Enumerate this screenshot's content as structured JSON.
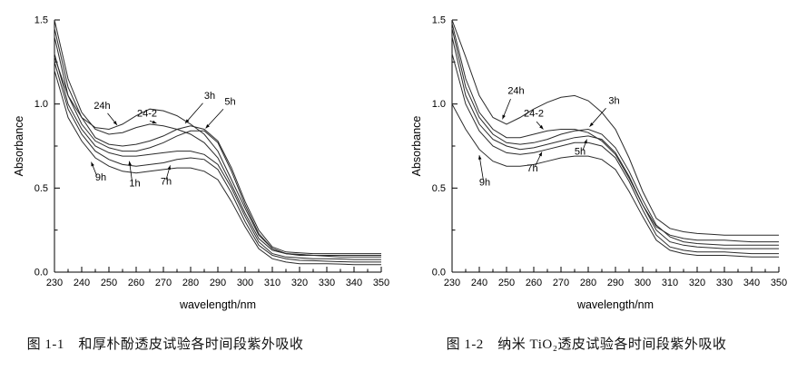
{
  "figures": [
    {
      "caption": "图 1-1　和厚朴酚透皮试验各时间段紫外吸收"
    },
    {
      "caption": "图 1-2　纳米 TiO₂透皮试验各时间段紫外吸收"
    }
  ],
  "chart_data": [
    {
      "type": "line",
      "title": "",
      "xlabel": "wavelength/nm",
      "ylabel": "Absorbance",
      "xlim": [
        230,
        350
      ],
      "ylim": [
        0,
        1.5
      ],
      "xticks": [
        230,
        240,
        250,
        260,
        270,
        280,
        290,
        300,
        310,
        320,
        330,
        340,
        350
      ],
      "yticks": [
        0,
        0.5,
        1.0,
        1.5
      ],
      "x_minor_step": 5,
      "y_minor_step": 0.25,
      "grid": false,
      "legend": "none",
      "line_color": "#2b2b2b",
      "x": [
        230,
        235,
        240,
        245,
        250,
        255,
        260,
        265,
        270,
        275,
        280,
        285,
        290,
        295,
        300,
        305,
        310,
        315,
        320,
        325,
        330,
        335,
        340,
        345,
        350
      ],
      "series": [
        {
          "name": "24h",
          "values": [
            1.28,
            1.05,
            0.92,
            0.86,
            0.85,
            0.88,
            0.93,
            0.97,
            0.96,
            0.93,
            0.88,
            0.82,
            0.72,
            0.55,
            0.38,
            0.22,
            0.14,
            0.11,
            0.1,
            0.1,
            0.095,
            0.09,
            0.09,
            0.09,
            0.09
          ]
        },
        {
          "name": "24-2",
          "values": [
            1.5,
            1.15,
            0.95,
            0.85,
            0.82,
            0.83,
            0.86,
            0.88,
            0.87,
            0.85,
            0.82,
            0.77,
            0.68,
            0.52,
            0.35,
            0.2,
            0.13,
            0.11,
            0.105,
            0.1,
            0.1,
            0.1,
            0.1,
            0.1,
            0.1
          ]
        },
        {
          "name": "3h",
          "values": [
            1.45,
            1.1,
            0.92,
            0.8,
            0.76,
            0.75,
            0.76,
            0.78,
            0.81,
            0.85,
            0.87,
            0.85,
            0.78,
            0.62,
            0.42,
            0.25,
            0.15,
            0.12,
            0.115,
            0.11,
            0.11,
            0.11,
            0.11,
            0.11,
            0.11
          ]
        },
        {
          "name": "5h",
          "values": [
            1.4,
            1.05,
            0.88,
            0.78,
            0.74,
            0.72,
            0.72,
            0.74,
            0.77,
            0.81,
            0.84,
            0.84,
            0.77,
            0.6,
            0.4,
            0.23,
            0.14,
            0.11,
            0.105,
            0.1,
            0.1,
            0.1,
            0.1,
            0.1,
            0.1
          ]
        },
        {
          "name": "1h",
          "values": [
            1.3,
            1.0,
            0.85,
            0.75,
            0.71,
            0.69,
            0.69,
            0.7,
            0.71,
            0.72,
            0.72,
            0.7,
            0.64,
            0.5,
            0.33,
            0.18,
            0.11,
            0.09,
            0.085,
            0.08,
            0.08,
            0.078,
            0.075,
            0.075,
            0.075
          ]
        },
        {
          "name": "7h",
          "values": [
            1.25,
            0.97,
            0.82,
            0.72,
            0.67,
            0.64,
            0.63,
            0.64,
            0.65,
            0.67,
            0.68,
            0.67,
            0.61,
            0.47,
            0.3,
            0.16,
            0.1,
            0.08,
            0.07,
            0.068,
            0.065,
            0.062,
            0.06,
            0.06,
            0.06
          ]
        },
        {
          "name": "9h",
          "values": [
            1.2,
            0.92,
            0.78,
            0.68,
            0.63,
            0.6,
            0.59,
            0.6,
            0.61,
            0.62,
            0.62,
            0.6,
            0.55,
            0.42,
            0.27,
            0.14,
            0.08,
            0.06,
            0.05,
            0.05,
            0.05,
            0.048,
            0.045,
            0.045,
            0.045
          ]
        }
      ],
      "annotations": [
        {
          "text": "24h",
          "tx": 247.5,
          "ty": 0.97,
          "line": [
            249.5,
            0.945,
            253,
            0.875
          ]
        },
        {
          "text": "24-2",
          "tx": 264,
          "ty": 0.925,
          "line": [
            265,
            0.9,
            267.5,
            0.885
          ]
        },
        {
          "text": "3h",
          "tx": 287,
          "ty": 1.03,
          "line": [
            284.5,
            1.005,
            278,
            0.885
          ]
        },
        {
          "text": "5h",
          "tx": 294.5,
          "ty": 0.995,
          "line": [
            292,
            0.97,
            285.5,
            0.855
          ]
        },
        {
          "text": "9h",
          "tx": 247,
          "ty": 0.545,
          "line": [
            245.5,
            0.575,
            243.5,
            0.655
          ]
        },
        {
          "text": "1h",
          "tx": 259.5,
          "ty": 0.51,
          "line": [
            258.5,
            0.54,
            257.5,
            0.66
          ]
        },
        {
          "text": "7h",
          "tx": 271,
          "ty": 0.52,
          "line": [
            271,
            0.55,
            272.5,
            0.635
          ]
        }
      ]
    },
    {
      "type": "line",
      "title": "",
      "xlabel": "wavelength/nm",
      "ylabel": "Absorbance",
      "xlim": [
        230,
        350
      ],
      "ylim": [
        0,
        1.5
      ],
      "xticks": [
        230,
        240,
        250,
        260,
        270,
        280,
        290,
        300,
        310,
        320,
        330,
        340,
        350
      ],
      "yticks": [
        0,
        0.5,
        1.0,
        1.5
      ],
      "x_minor_step": 5,
      "y_minor_step": 0.25,
      "grid": false,
      "legend": "none",
      "line_color": "#2b2b2b",
      "x": [
        230,
        235,
        240,
        245,
        250,
        255,
        260,
        265,
        270,
        275,
        280,
        285,
        290,
        295,
        300,
        305,
        310,
        315,
        320,
        325,
        330,
        335,
        340,
        345,
        350
      ],
      "series": [
        {
          "name": "24h",
          "values": [
            1.5,
            1.28,
            1.05,
            0.92,
            0.88,
            0.92,
            0.97,
            1.01,
            1.04,
            1.05,
            1.02,
            0.95,
            0.85,
            0.68,
            0.48,
            0.32,
            0.26,
            0.24,
            0.23,
            0.225,
            0.22,
            0.22,
            0.22,
            0.22,
            0.22
          ]
        },
        {
          "name": "24-2",
          "values": [
            1.48,
            1.15,
            0.95,
            0.85,
            0.8,
            0.8,
            0.82,
            0.84,
            0.85,
            0.85,
            0.83,
            0.78,
            0.7,
            0.56,
            0.4,
            0.27,
            0.22,
            0.2,
            0.19,
            0.19,
            0.19,
            0.185,
            0.18,
            0.18,
            0.18
          ]
        },
        {
          "name": "3h",
          "values": [
            1.45,
            1.1,
            0.92,
            0.82,
            0.77,
            0.76,
            0.77,
            0.79,
            0.82,
            0.84,
            0.85,
            0.82,
            0.74,
            0.6,
            0.43,
            0.28,
            0.21,
            0.18,
            0.17,
            0.165,
            0.16,
            0.16,
            0.16,
            0.16,
            0.16
          ]
        },
        {
          "name": "5h",
          "values": [
            1.4,
            1.05,
            0.88,
            0.79,
            0.75,
            0.73,
            0.74,
            0.76,
            0.78,
            0.8,
            0.81,
            0.79,
            0.71,
            0.57,
            0.4,
            0.25,
            0.18,
            0.16,
            0.15,
            0.145,
            0.14,
            0.14,
            0.14,
            0.14,
            0.14
          ]
        },
        {
          "name": "7h",
          "values": [
            1.3,
            1.0,
            0.84,
            0.75,
            0.71,
            0.7,
            0.71,
            0.73,
            0.75,
            0.77,
            0.77,
            0.75,
            0.68,
            0.54,
            0.37,
            0.22,
            0.15,
            0.13,
            0.12,
            0.12,
            0.12,
            0.115,
            0.11,
            0.11,
            0.11
          ]
        },
        {
          "name": "9h",
          "values": [
            1.0,
            0.85,
            0.73,
            0.66,
            0.63,
            0.63,
            0.64,
            0.66,
            0.68,
            0.69,
            0.69,
            0.67,
            0.61,
            0.48,
            0.33,
            0.19,
            0.13,
            0.11,
            0.1,
            0.1,
            0.1,
            0.095,
            0.09,
            0.09,
            0.09
          ]
        }
      ],
      "annotations": [
        {
          "text": "24h",
          "tx": 253.5,
          "ty": 1.06,
          "line": [
            251.5,
            1.03,
            248.5,
            0.91
          ]
        },
        {
          "text": "24-2",
          "tx": 260,
          "ty": 0.925,
          "line": [
            261,
            0.895,
            263.5,
            0.85
          ]
        },
        {
          "text": "3h",
          "tx": 289.5,
          "ty": 1.0,
          "line": [
            286.5,
            0.975,
            280.5,
            0.865
          ]
        },
        {
          "text": "5h",
          "tx": 277,
          "ty": 0.7,
          "line": [
            278,
            0.725,
            279.5,
            0.79
          ]
        },
        {
          "text": "7h",
          "tx": 259.5,
          "ty": 0.6,
          "line": [
            260.5,
            0.63,
            263,
            0.715
          ]
        },
        {
          "text": "9h",
          "tx": 242,
          "ty": 0.515,
          "line": [
            241.5,
            0.545,
            240,
            0.695
          ]
        }
      ]
    }
  ]
}
